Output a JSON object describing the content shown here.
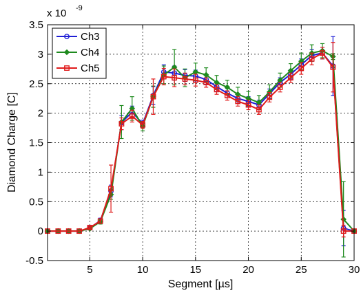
{
  "chart_data": {
    "type": "line",
    "xlabel": "Segment [µs]",
    "ylabel": "Diamond Charge [C]",
    "y_exponent_label": "x 10",
    "y_exponent_power": "-9",
    "xlim": [
      1,
      30
    ],
    "ylim": [
      -0.5,
      3.5
    ],
    "xticks": [
      5,
      10,
      15,
      20,
      25,
      30
    ],
    "yticks": [
      -0.5,
      0,
      0.5,
      1,
      1.5,
      2,
      2.5,
      3,
      3.5
    ],
    "xtick_labels": [
      "5",
      "10",
      "15",
      "20",
      "25",
      "30"
    ],
    "ytick_labels": [
      "-0.5",
      "0",
      "0.5",
      "1",
      "1.5",
      "2",
      "2.5",
      "3",
      "3.5"
    ],
    "grid": true,
    "legend_position": "top-left",
    "x": [
      1,
      2,
      3,
      4,
      5,
      6,
      7,
      8,
      9,
      10,
      11,
      12,
      13,
      14,
      15,
      16,
      17,
      18,
      19,
      20,
      21,
      22,
      23,
      24,
      25,
      26,
      27,
      28,
      29,
      30
    ],
    "series": [
      {
        "name": "Ch3",
        "color": "#1f1fd6",
        "marker": "circle",
        "values": [
          0,
          0,
          0,
          0,
          0.05,
          0.18,
          0.68,
          1.84,
          2.02,
          1.82,
          2.3,
          2.7,
          2.68,
          2.64,
          2.63,
          2.57,
          2.45,
          2.34,
          2.25,
          2.2,
          2.14,
          2.33,
          2.52,
          2.66,
          2.82,
          2.98,
          3.02,
          2.8,
          0.05,
          0
        ],
        "errors": [
          0,
          0,
          0,
          0,
          0.02,
          0.04,
          0.1,
          0.12,
          0.1,
          0.06,
          0.15,
          0.12,
          0.12,
          0.1,
          0.1,
          0.08,
          0.08,
          0.08,
          0.08,
          0.08,
          0.08,
          0.08,
          0.08,
          0.08,
          0.1,
          0.1,
          0.1,
          0.5,
          0.3,
          0
        ]
      },
      {
        "name": "Ch4",
        "color": "#1e8a1e",
        "marker": "diamond",
        "values": [
          0,
          0,
          0,
          0,
          0.04,
          0.16,
          0.62,
          1.85,
          2.08,
          1.78,
          2.28,
          2.65,
          2.78,
          2.6,
          2.7,
          2.65,
          2.52,
          2.44,
          2.32,
          2.25,
          2.18,
          2.36,
          2.56,
          2.72,
          2.88,
          3.02,
          3.06,
          2.96,
          0.2,
          0
        ],
        "errors": [
          0,
          0,
          0,
          0,
          0.02,
          0.04,
          0.08,
          0.28,
          0.2,
          0.08,
          0.18,
          0.15,
          0.3,
          0.15,
          0.15,
          0.12,
          0.12,
          0.12,
          0.12,
          0.12,
          0.12,
          0.12,
          0.12,
          0.12,
          0.14,
          0.14,
          0.12,
          0.05,
          0.64,
          0
        ]
      },
      {
        "name": "Ch5",
        "color": "#e01a1a",
        "marker": "square",
        "values": [
          0,
          0,
          0,
          0,
          0.06,
          0.17,
          0.72,
          1.82,
          1.95,
          1.8,
          2.28,
          2.62,
          2.6,
          2.58,
          2.56,
          2.52,
          2.4,
          2.3,
          2.2,
          2.14,
          2.06,
          2.27,
          2.44,
          2.6,
          2.76,
          2.92,
          3.02,
          2.78,
          0,
          0
        ],
        "errors": [
          0,
          0,
          0,
          0,
          0.02,
          0.04,
          0.4,
          0.1,
          0.1,
          0.06,
          0.3,
          0.14,
          0.15,
          0.1,
          0.1,
          0.08,
          0.08,
          0.08,
          0.08,
          0.08,
          0.08,
          0.08,
          0.08,
          0.08,
          0.1,
          0.1,
          0.1,
          0.42,
          0.1,
          0
        ]
      }
    ]
  }
}
